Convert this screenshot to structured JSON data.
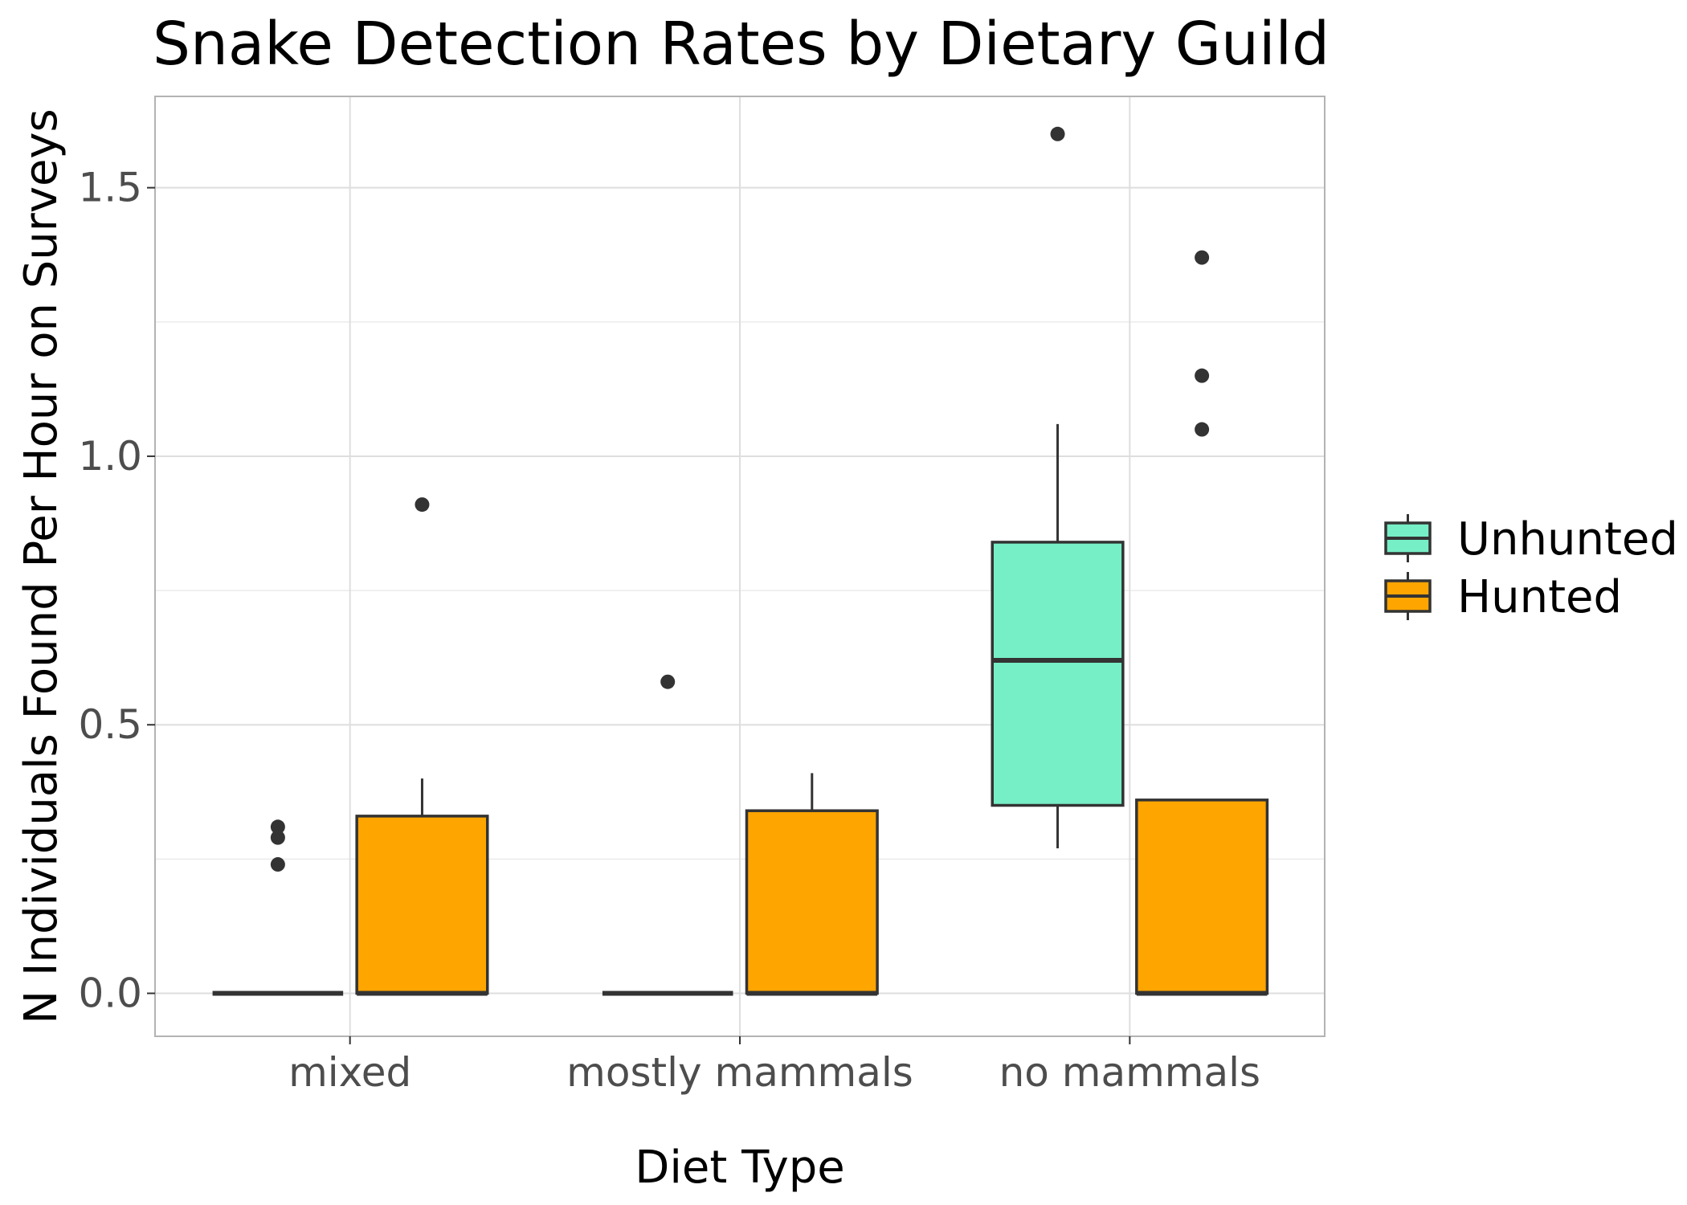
{
  "chart_data": {
    "type": "boxplot",
    "title": "Snake Detection Rates by Dietary Guild",
    "xlabel": "Diet Type",
    "ylabel": "N Individuals Found Per Hour on Surveys",
    "categories": [
      "mixed",
      "mostly mammals",
      "no mammals"
    ],
    "ylim": [
      -0.08,
      1.67
    ],
    "yticks": [
      0.0,
      0.5,
      1.0,
      1.5
    ],
    "ytick_labels": [
      "0.0",
      "0.5",
      "1.0",
      "1.5"
    ],
    "grid": true,
    "legend_position": "right",
    "series": [
      {
        "name": "Unhunted",
        "color": "#76EEC6",
        "boxes": [
          {
            "category": "mixed",
            "whisker_low": 0.0,
            "q1": 0.0,
            "median": 0.0,
            "q3": 0.0,
            "whisker_high": 0.0,
            "outliers": [
              0.24,
              0.29,
              0.31
            ]
          },
          {
            "category": "mostly mammals",
            "whisker_low": 0.0,
            "q1": 0.0,
            "median": 0.0,
            "q3": 0.0,
            "whisker_high": 0.0,
            "outliers": [
              0.58
            ]
          },
          {
            "category": "no mammals",
            "whisker_low": 0.27,
            "q1": 0.35,
            "median": 0.62,
            "q3": 0.84,
            "whisker_high": 1.06,
            "outliers": [
              1.6
            ]
          }
        ]
      },
      {
        "name": "Hunted",
        "color": "#FFA500",
        "boxes": [
          {
            "category": "mixed",
            "whisker_low": 0.0,
            "q1": 0.0,
            "median": 0.0,
            "q3": 0.33,
            "whisker_high": 0.4,
            "outliers": [
              0.91
            ]
          },
          {
            "category": "mostly mammals",
            "whisker_low": 0.0,
            "q1": 0.0,
            "median": 0.0,
            "q3": 0.34,
            "whisker_high": 0.41,
            "outliers": []
          },
          {
            "category": "no mammals",
            "whisker_low": 0.0,
            "q1": 0.0,
            "median": 0.0,
            "q3": 0.36,
            "whisker_high": 0.36,
            "outliers": [
              1.05,
              1.15,
              1.37
            ]
          }
        ]
      }
    ]
  }
}
